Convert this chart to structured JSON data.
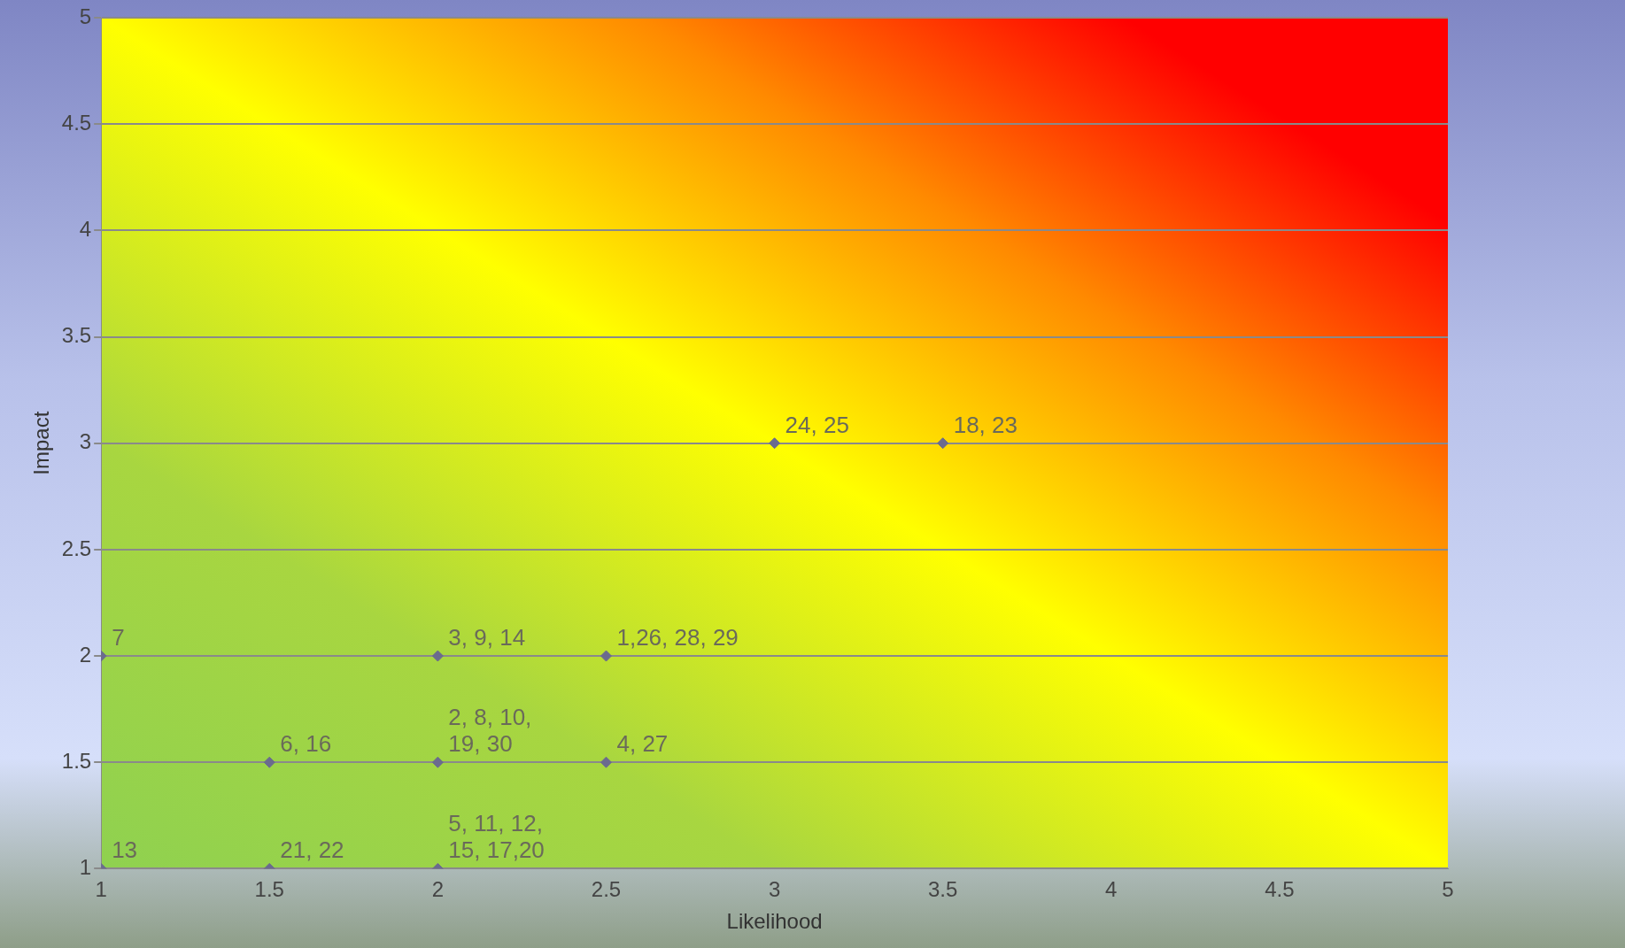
{
  "chart_data": {
    "type": "scatter",
    "xlabel": "Likelihood",
    "ylabel": "Impact",
    "xlim": [
      1,
      5
    ],
    "xticks": [
      1,
      1.5,
      2,
      2.5,
      3,
      3.5,
      4,
      4.5,
      5
    ],
    "ylim": [
      1,
      5
    ],
    "yticks": [
      1,
      1.5,
      2,
      2.5,
      3,
      3.5,
      4,
      4.5,
      5
    ],
    "grid": "y",
    "marker": "diamond",
    "legend": false,
    "series": [
      {
        "color": "#6b6b8e",
        "x": [
          3,
          3.5,
          1,
          2,
          2.5,
          1.5,
          2,
          2.5,
          1,
          1.5,
          2
        ],
        "values": [
          3,
          3,
          2,
          2,
          2,
          1.5,
          1.5,
          1.5,
          1,
          1,
          1
        ]
      }
    ],
    "annotations": [
      {
        "text": "24, 25",
        "x": 3,
        "y": 3
      },
      {
        "text": "18, 23",
        "x": 3.5,
        "y": 3
      },
      {
        "text": "7",
        "x": 1,
        "y": 2
      },
      {
        "text": "3, 9, 14",
        "x": 2,
        "y": 2
      },
      {
        "text": "1,26, 28, 29",
        "x": 2.5,
        "y": 2
      },
      {
        "text": "6, 16",
        "x": 1.5,
        "y": 1.5
      },
      {
        "text": "2, 8, 10,\n19, 30",
        "x": 2,
        "y": 1.5
      },
      {
        "text": "4, 27",
        "x": 2.5,
        "y": 1.5
      },
      {
        "text": "13",
        "x": 1,
        "y": 1
      },
      {
        "text": "21, 22",
        "x": 1.5,
        "y": 1
      },
      {
        "text": "5, 11, 12,\n15, 17,20",
        "x": 2,
        "y": 1
      }
    ]
  }
}
